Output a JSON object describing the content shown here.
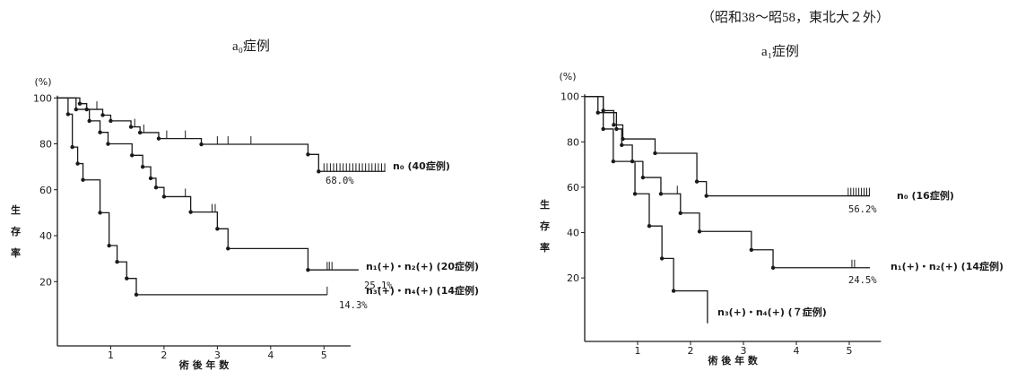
{
  "header": "（昭和38～昭58，東北大２外）",
  "colors": {
    "line": "#1a1a1a",
    "background": "#ffffff"
  },
  "chart_data": [
    {
      "type": "line",
      "title": "a₀症例",
      "xlabel": "術 後 年 数",
      "ylabel": "生 存 率",
      "yunit": "(%)",
      "xlim": [
        0,
        5.5
      ],
      "ylim": [
        -8,
        101
      ],
      "xticks": [
        1,
        2,
        3,
        4,
        5
      ],
      "xtick_labels": [
        "1",
        "2",
        "3",
        "4",
        "5"
      ],
      "yticks": [
        100,
        80,
        60,
        40,
        20
      ],
      "ytick_labels": [
        "100",
        "80",
        "60",
        "40",
        "20"
      ],
      "grid": false,
      "series": [
        {
          "name": "n₀ (40症例)",
          "end_label": "68.0%",
          "steps": [
            [
              0,
              100
            ],
            [
              0.42,
              97.5
            ],
            [
              0.55,
              95
            ],
            [
              0.85,
              92.5
            ],
            [
              1.0,
              90
            ],
            [
              1.38,
              87.4
            ],
            [
              1.55,
              84.9
            ],
            [
              1.9,
              82.3
            ],
            [
              2.7,
              79.8
            ],
            [
              4.7,
              75.4
            ],
            [
              4.9,
              68.0
            ]
          ],
          "end": 6.15,
          "censored": [
            0.74,
            1.45,
            1.62,
            2.05,
            2.4,
            3.0,
            3.2,
            3.63,
            5.0,
            5.06,
            5.12,
            5.18,
            5.24,
            5.3,
            5.36,
            5.42,
            5.48,
            5.54,
            5.6,
            5.66,
            5.72,
            5.78,
            5.84,
            5.9,
            5.96,
            6.02,
            6.08,
            6.14
          ]
        },
        {
          "name": "n₁(+)・n₂(+) (20症例)",
          "end_label": "25.1%",
          "steps": [
            [
              0,
              100
            ],
            [
              0.35,
              95
            ],
            [
              0.6,
              90
            ],
            [
              0.8,
              85
            ],
            [
              0.95,
              80
            ],
            [
              1.4,
              75
            ],
            [
              1.6,
              70
            ],
            [
              1.75,
              65
            ],
            [
              1.85,
              61
            ],
            [
              2.0,
              57
            ],
            [
              2.5,
              50.3
            ],
            [
              3.0,
              43
            ],
            [
              3.2,
              34.4
            ],
            [
              4.7,
              25.1
            ]
          ],
          "end": 5.65,
          "censored": [
            2.4,
            2.9,
            2.96,
            5.06,
            5.1,
            5.15
          ]
        },
        {
          "name": "n₃(+)・n₄(+) (14症例)",
          "end_label": "14.3%",
          "steps": [
            [
              0,
              100
            ],
            [
              0.2,
              92.9
            ],
            [
              0.28,
              78.6
            ],
            [
              0.38,
              71.4
            ],
            [
              0.48,
              64.3
            ],
            [
              0.8,
              50
            ],
            [
              0.97,
              35.7
            ],
            [
              1.12,
              28.6
            ],
            [
              1.3,
              21.4
            ],
            [
              1.48,
              14.3
            ]
          ],
          "end": 5.06,
          "censored": [
            5.06
          ]
        }
      ]
    },
    {
      "type": "line",
      "title": "a₁症例",
      "xlabel": "術 後 年 数",
      "ylabel": "生 存 率",
      "yunit": "(%)",
      "xlim": [
        0,
        5.6
      ],
      "ylim": [
        -8,
        101
      ],
      "xticks": [
        1,
        2,
        3,
        4,
        5
      ],
      "xtick_labels": [
        "1",
        "2",
        "3",
        "4",
        "5"
      ],
      "yticks": [
        100,
        80,
        60,
        40,
        20
      ],
      "ytick_labels": [
        "100",
        "80",
        "60",
        "40",
        "20"
      ],
      "grid": false,
      "series": [
        {
          "name": "n₀ (16症例)",
          "end_label": "56.2%",
          "steps": [
            [
              0,
              100
            ],
            [
              0.35,
              93.8
            ],
            [
              0.55,
              87.5
            ],
            [
              0.72,
              81.3
            ],
            [
              1.33,
              75
            ],
            [
              2.12,
              62.5
            ],
            [
              2.3,
              56.2
            ]
          ],
          "end": 5.39,
          "censored": [
            0.6,
            4.98,
            5.03,
            5.08,
            5.13,
            5.18,
            5.23,
            5.28,
            5.33,
            5.38
          ]
        },
        {
          "name": "n₁(+)・n₂(+) (14症例)",
          "end_label": "24.5%",
          "steps": [
            [
              0,
              100
            ],
            [
              0.25,
              92.9
            ],
            [
              0.6,
              85.7
            ],
            [
              0.7,
              78.6
            ],
            [
              0.9,
              71.4
            ],
            [
              1.1,
              64.3
            ],
            [
              1.44,
              57.1
            ],
            [
              1.81,
              48.6
            ],
            [
              2.17,
              40.5
            ],
            [
              3.15,
              32.4
            ],
            [
              3.56,
              24.5
            ]
          ],
          "end": 5.39,
          "censored": [
            1.75,
            5.05,
            5.1
          ]
        },
        {
          "name": "n₃(+)・n₄(+) (７症例)",
          "end_label": "",
          "steps": [
            [
              0,
              100
            ],
            [
              0.35,
              85.7
            ],
            [
              0.54,
              71.4
            ],
            [
              0.95,
              57.1
            ],
            [
              1.22,
              42.9
            ],
            [
              1.46,
              28.6
            ],
            [
              1.68,
              14.3
            ],
            [
              2.32,
              0
            ]
          ],
          "end": 2.32,
          "censored": []
        }
      ]
    }
  ]
}
